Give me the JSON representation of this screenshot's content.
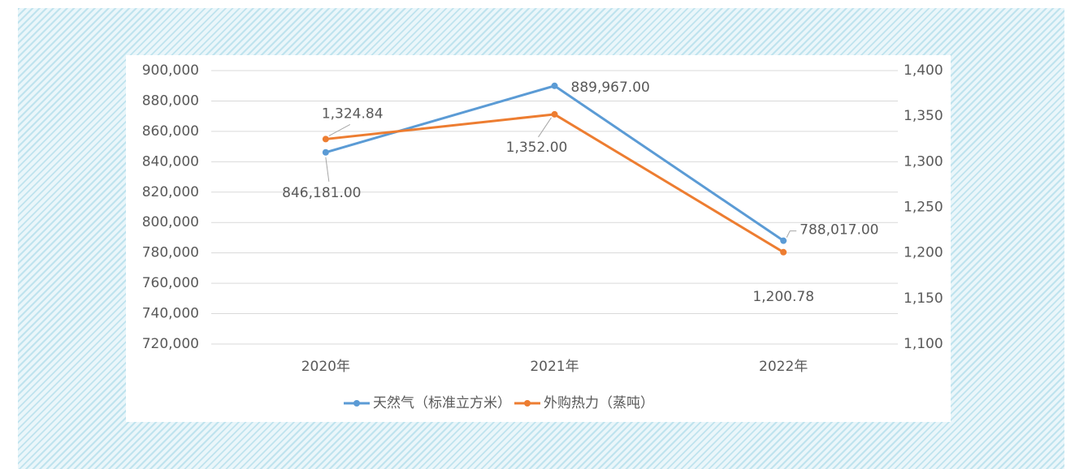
{
  "chart_data": {
    "type": "line",
    "categories": [
      "2020年",
      "2021年",
      "2022年"
    ],
    "series": [
      {
        "name": "天然气（标准立方米）",
        "color": "#5b9bd5",
        "values": [
          846181,
          889967,
          788017
        ],
        "value_labels": [
          "846,181.00",
          "889,967.00",
          "788,017.00"
        ]
      },
      {
        "name": "外购热力（蒸吨）",
        "color": "#ed7d31",
        "axis": "y2",
        "values": [
          1324.84,
          1352,
          1200.78
        ],
        "value_labels": [
          "1,324.84",
          "1,352.00",
          "1,200.78"
        ]
      }
    ],
    "ylim": [
      720000,
      900000
    ],
    "yticks": [
      {
        "value": 720000,
        "label": "720,000"
      },
      {
        "value": 740000,
        "label": "740,000"
      },
      {
        "value": 760000,
        "label": "760,000"
      },
      {
        "value": 780000,
        "label": "780,000"
      },
      {
        "value": 800000,
        "label": "800,000"
      },
      {
        "value": 820000,
        "label": "820,000"
      },
      {
        "value": 840000,
        "label": "840,000"
      },
      {
        "value": 860000,
        "label": "860,000"
      },
      {
        "value": 880000,
        "label": "880,000"
      },
      {
        "value": 900000,
        "label": "900,000"
      }
    ],
    "y2lim": [
      1100,
      1400
    ],
    "y2ticks": [
      {
        "value": 1100,
        "label": "1,100"
      },
      {
        "value": 1150,
        "label": "1,150"
      },
      {
        "value": 1200,
        "label": "1,200"
      },
      {
        "value": 1250,
        "label": "1,250"
      },
      {
        "value": 1300,
        "label": "1,300"
      },
      {
        "value": 1350,
        "label": "1,350"
      },
      {
        "value": 1400,
        "label": "1,400"
      }
    ],
    "grid": true,
    "legend": "bottom"
  }
}
